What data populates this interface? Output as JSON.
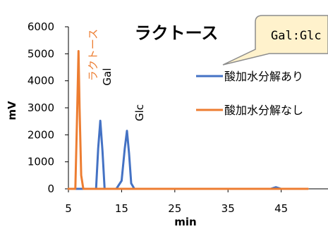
{
  "chart_data": {
    "type": "line",
    "title": "ラクトース",
    "xlabel": "min",
    "ylabel": "mV",
    "xlim": [
      5,
      50
    ],
    "ylim": [
      0,
      6000
    ],
    "x_ticks": [
      5,
      15,
      25,
      35,
      45
    ],
    "y_ticks": [
      0,
      1000,
      2000,
      3000,
      4000,
      5000,
      6000
    ],
    "x_tick_labels": [
      "5",
      "15",
      "25",
      "35",
      "45"
    ],
    "y_tick_labels": [
      "0",
      "1000",
      "2000",
      "3000",
      "4000",
      "5000",
      "6000"
    ],
    "legend_position": "right",
    "series": [
      {
        "name": "酸加水分解あり",
        "color": "#4472C4",
        "x": [
          5,
          10.2,
          10.6,
          11.0,
          11.4,
          11.8,
          14.0,
          15.0,
          15.6,
          16.0,
          16.4,
          16.8,
          17.4,
          20,
          30,
          40,
          43,
          44,
          45,
          50
        ],
        "y": [
          0,
          0,
          1500,
          2520,
          1400,
          0,
          0,
          300,
          1500,
          2150,
          1300,
          200,
          0,
          0,
          0,
          0,
          0,
          60,
          0,
          0
        ]
      },
      {
        "name": "酸加水分解なし",
        "color": "#ED7D31",
        "x": [
          5,
          6.3,
          6.6,
          6.9,
          7.1,
          7.4,
          7.8,
          10,
          20,
          30,
          40,
          50
        ],
        "y": [
          0,
          0,
          2500,
          5100,
          3000,
          500,
          0,
          0,
          0,
          0,
          0,
          0
        ]
      }
    ],
    "annotations": {
      "orange_peak": {
        "text": "ラクトース",
        "color": "#ED7D31"
      },
      "gal_peak": {
        "text": "Gal"
      },
      "glc_peak": {
        "text": "Glc"
      },
      "callout": {
        "text": "Gal:Glc"
      }
    }
  }
}
